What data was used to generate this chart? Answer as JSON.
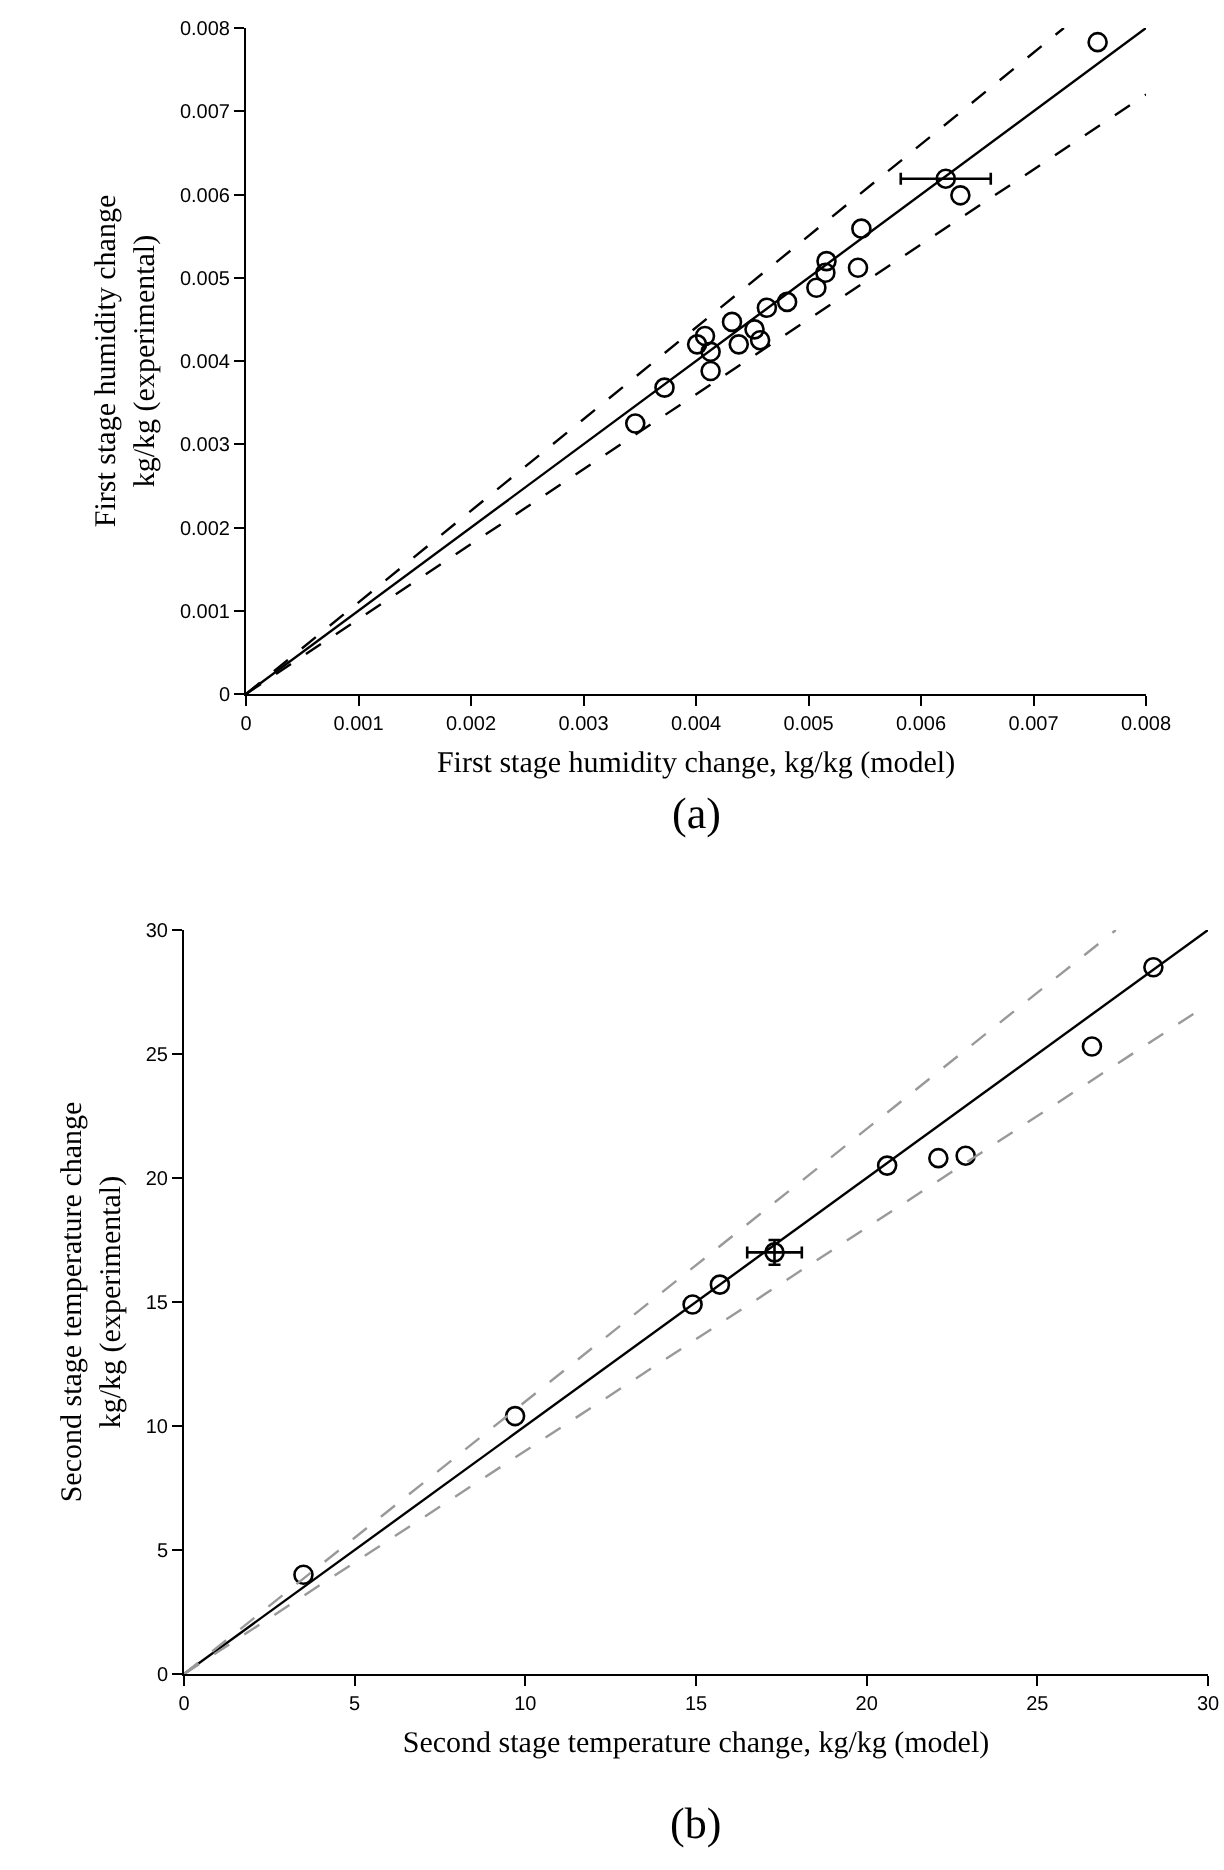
{
  "chart_data": [
    {
      "type": "scatter",
      "xlabel": "First stage humidity change, kg/kg (model)",
      "ylabel": "First stage humidity change\nkg/kg (experimental)",
      "xlim": [
        0,
        0.008
      ],
      "ylim": [
        0,
        0.008
      ],
      "xticks": [
        0,
        0.001,
        0.002,
        0.003,
        0.004,
        0.005,
        0.006,
        0.007,
        0.008
      ],
      "yticks": [
        0,
        0.001,
        0.002,
        0.003,
        0.004,
        0.005,
        0.006,
        0.007,
        0.008
      ],
      "grid": false,
      "marker": "circle",
      "annotations": [
        "(a)"
      ],
      "series": [
        {
          "color": "#000000",
          "x": [
            0.00757,
            0.00622,
            0.00635,
            0.00547,
            0.00516,
            0.00515,
            0.00544,
            0.00507,
            0.00481,
            0.00463,
            0.00432,
            0.00452,
            0.00457,
            0.00438,
            0.00408,
            0.00401,
            0.00413,
            0.00413,
            0.00372,
            0.00346
          ],
          "values": [
            0.00783,
            0.00619,
            0.00599,
            0.00559,
            0.0052,
            0.00506,
            0.00512,
            0.00488,
            0.00471,
            0.00464,
            0.00447,
            0.00438,
            0.00425,
            0.0042,
            0.0043,
            0.0042,
            0.00411,
            0.00388,
            0.00368,
            0.00325
          ],
          "xerrors": [
            null,
            0.0004,
            null,
            null,
            null,
            null,
            null,
            null,
            null,
            null,
            null,
            null,
            null,
            null,
            null,
            null,
            null,
            null,
            null,
            null
          ]
        },
        {
          "type": "line",
          "color": "#000000",
          "line_style": "solid",
          "marker": "none",
          "x": [
            0,
            0.008
          ],
          "values": [
            0,
            0.008
          ]
        },
        {
          "type": "line",
          "color": "#000000",
          "line_style": "dashed",
          "marker": "none",
          "x": [
            0,
            0.00727
          ],
          "values": [
            0,
            0.008
          ]
        },
        {
          "type": "line",
          "color": "#000000",
          "line_style": "dashed",
          "marker": "none",
          "x": [
            0,
            0.008
          ],
          "values": [
            0,
            0.0072
          ]
        }
      ]
    },
    {
      "type": "scatter",
      "xlabel": "Second stage temperature change, kg/kg (model)",
      "ylabel": "Second stage temperature change\nkg/kg (experimental)",
      "xlim": [
        0,
        30
      ],
      "ylim": [
        0,
        30
      ],
      "xticks": [
        0,
        5,
        10,
        15,
        20,
        25,
        30
      ],
      "yticks": [
        0,
        5,
        10,
        15,
        20,
        25,
        30
      ],
      "grid": false,
      "marker": "circle",
      "annotations": [
        "(b)"
      ],
      "series": [
        {
          "color": "#000000",
          "x": [
            3.5,
            9.7,
            14.9,
            15.7,
            17.3,
            20.6,
            22.1,
            22.9,
            26.6,
            28.4
          ],
          "values": [
            4.0,
            10.4,
            14.9,
            15.7,
            17.0,
            20.5,
            20.8,
            20.9,
            25.3,
            28.5
          ],
          "xerrors": [
            null,
            null,
            null,
            null,
            0.8,
            null,
            null,
            null,
            null,
            null
          ],
          "errors": [
            null,
            null,
            null,
            null,
            0.5,
            null,
            null,
            null,
            null,
            null
          ]
        },
        {
          "type": "line",
          "color": "#000000",
          "line_style": "solid",
          "marker": "none",
          "x": [
            0,
            30
          ],
          "values": [
            0,
            30
          ]
        },
        {
          "type": "line",
          "color": "#999999",
          "line_style": "dashed",
          "marker": "none",
          "x": [
            0,
            27.3
          ],
          "values": [
            0,
            30
          ]
        },
        {
          "type": "line",
          "color": "#999999",
          "line_style": "dashed",
          "marker": "none",
          "x": [
            0,
            30
          ],
          "values": [
            0,
            27
          ]
        }
      ]
    }
  ]
}
